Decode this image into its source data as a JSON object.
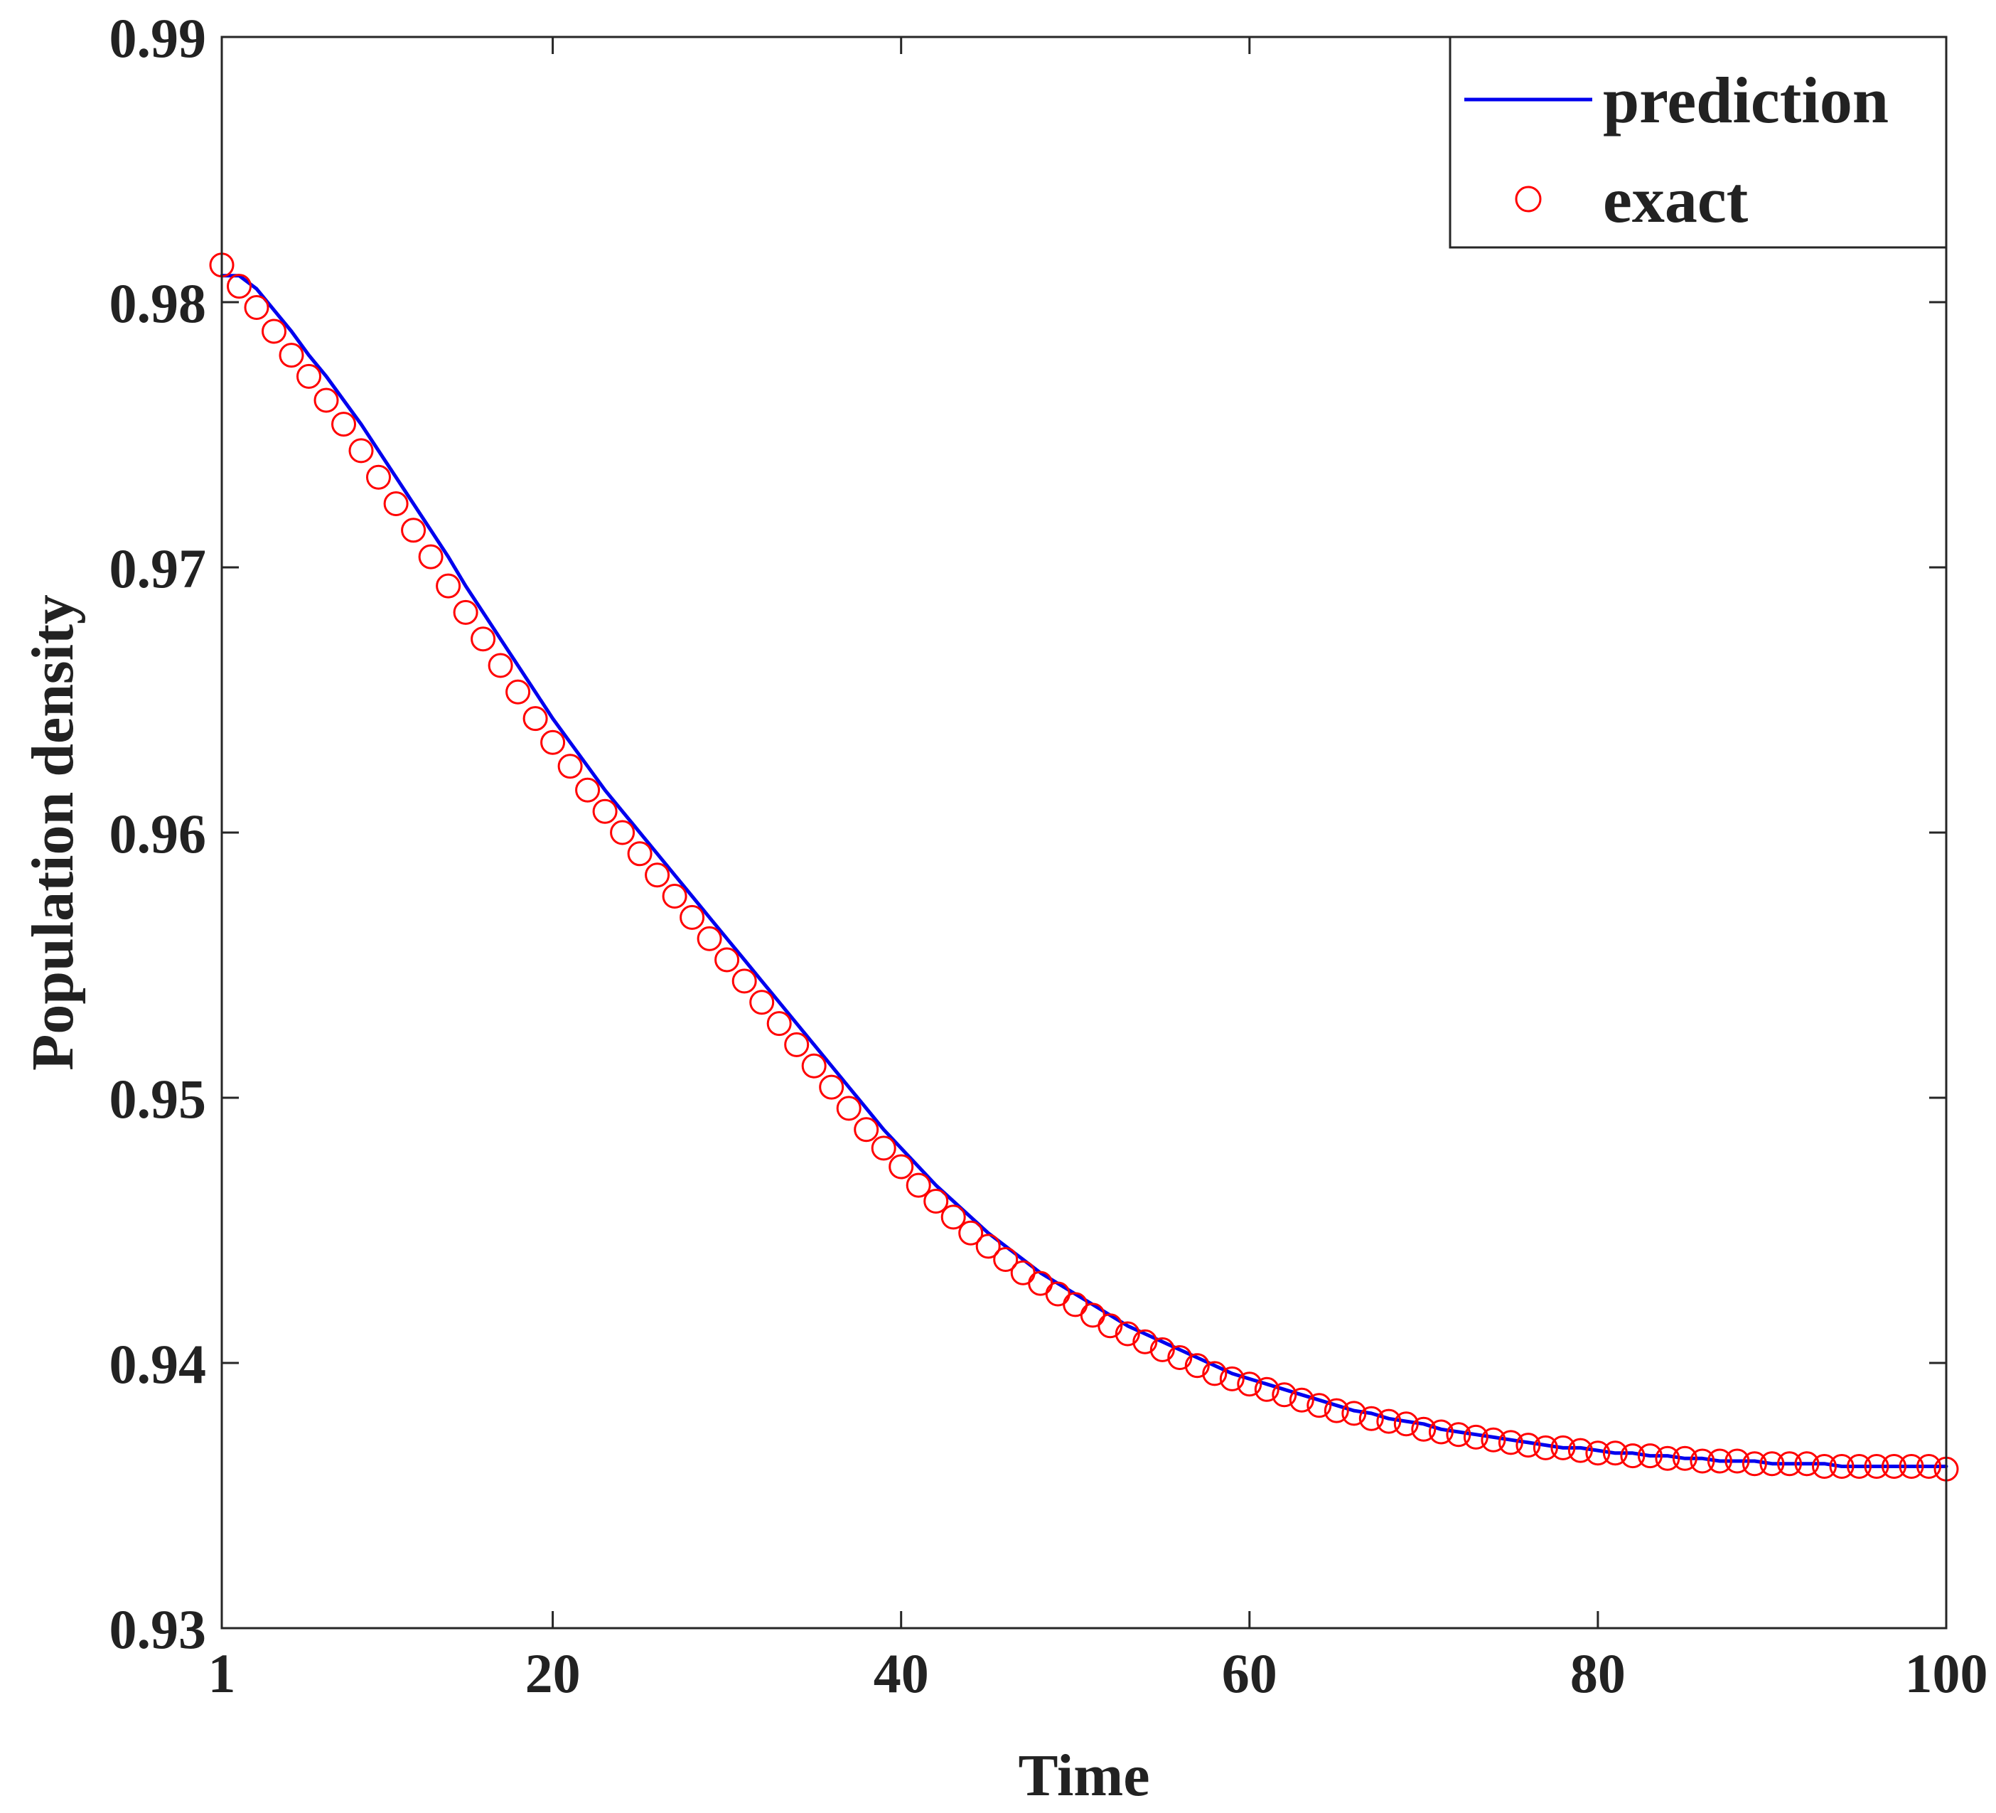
{
  "chart_data": {
    "type": "line",
    "title": "",
    "xlabel": "Time",
    "ylabel": "Population density",
    "xlim": [
      1,
      100
    ],
    "ylim": [
      0.93,
      0.99
    ],
    "xticks": [
      1,
      20,
      40,
      60,
      80,
      100
    ],
    "xtick_labels": [
      "1",
      "20",
      "40",
      "60",
      "80",
      "100"
    ],
    "yticks": [
      0.93,
      0.94,
      0.95,
      0.96,
      0.97,
      0.98,
      0.99
    ],
    "ytick_labels": [
      "0.93",
      "0.94",
      "0.95",
      "0.96",
      "0.97",
      "0.98",
      "0.99"
    ],
    "grid": false,
    "legend_position": "top-right",
    "series": [
      {
        "name": "prediction",
        "style": "line",
        "color": "#0000ee",
        "x": [
          1,
          2,
          3,
          4,
          5,
          6,
          7,
          8,
          9,
          10,
          11,
          12,
          13,
          14,
          15,
          16,
          17,
          18,
          19,
          20,
          21,
          22,
          23,
          24,
          25,
          26,
          27,
          28,
          29,
          30,
          31,
          32,
          33,
          34,
          35,
          36,
          37,
          38,
          39,
          40,
          41,
          42,
          43,
          44,
          45,
          46,
          47,
          48,
          49,
          50,
          51,
          52,
          53,
          54,
          55,
          56,
          57,
          58,
          59,
          60,
          61,
          62,
          63,
          64,
          65,
          66,
          67,
          68,
          69,
          70,
          71,
          72,
          73,
          74,
          75,
          76,
          77,
          78,
          79,
          80,
          81,
          82,
          83,
          84,
          85,
          86,
          87,
          88,
          89,
          90,
          91,
          92,
          93,
          94,
          95,
          96,
          97,
          98,
          99,
          100
        ],
        "y": [
          0.981,
          0.981,
          0.9805,
          0.9797,
          0.9789,
          0.978,
          0.9772,
          0.9763,
          0.9754,
          0.9744,
          0.9734,
          0.9724,
          0.9714,
          0.9704,
          0.9693,
          0.9683,
          0.9673,
          0.9663,
          0.9653,
          0.9643,
          0.9634,
          0.9625,
          0.9616,
          0.9608,
          0.96,
          0.9592,
          0.9584,
          0.9576,
          0.9568,
          0.956,
          0.9552,
          0.9544,
          0.9536,
          0.9528,
          0.952,
          0.9512,
          0.9504,
          0.9496,
          0.9488,
          0.9481,
          0.9474,
          0.9467,
          0.9461,
          0.9455,
          0.9449,
          0.9444,
          0.9439,
          0.9434,
          0.943,
          0.9426,
          0.9422,
          0.9418,
          0.9414,
          0.9411,
          0.9408,
          0.9405,
          0.9402,
          0.9399,
          0.9396,
          0.9394,
          0.9392,
          0.939,
          0.9388,
          0.9386,
          0.9384,
          0.9382,
          0.9381,
          0.9379,
          0.9378,
          0.9377,
          0.9375,
          0.9374,
          0.9373,
          0.9372,
          0.9371,
          0.937,
          0.9369,
          0.9368,
          0.9368,
          0.9367,
          0.9366,
          0.9366,
          0.9365,
          0.9365,
          0.9364,
          0.9364,
          0.9363,
          0.9363,
          0.9363,
          0.9362,
          0.9362,
          0.9362,
          0.9362,
          0.9361,
          0.9361,
          0.9361,
          0.9361,
          0.9361,
          0.9361,
          0.9361
        ]
      },
      {
        "name": "exact",
        "style": "circle",
        "color": "#ff0000",
        "x": [
          1,
          2,
          3,
          4,
          5,
          6,
          7,
          8,
          9,
          10,
          11,
          12,
          13,
          14,
          15,
          16,
          17,
          18,
          19,
          20,
          21,
          22,
          23,
          24,
          25,
          26,
          27,
          28,
          29,
          30,
          31,
          32,
          33,
          34,
          35,
          36,
          37,
          38,
          39,
          40,
          41,
          42,
          43,
          44,
          45,
          46,
          47,
          48,
          49,
          50,
          51,
          52,
          53,
          54,
          55,
          56,
          57,
          58,
          59,
          60,
          61,
          62,
          63,
          64,
          65,
          66,
          67,
          68,
          69,
          70,
          71,
          72,
          73,
          74,
          75,
          76,
          77,
          78,
          79,
          80,
          81,
          82,
          83,
          84,
          85,
          86,
          87,
          88,
          89,
          90,
          91,
          92,
          93,
          94,
          95,
          96,
          97,
          98,
          99,
          100
        ],
        "y": [
          0.9814,
          0.9806,
          0.9798,
          0.9789,
          0.978,
          0.9772,
          0.9763,
          0.9754,
          0.9744,
          0.9734,
          0.9724,
          0.9714,
          0.9704,
          0.9693,
          0.9683,
          0.9673,
          0.9663,
          0.9653,
          0.9643,
          0.9634,
          0.9625,
          0.9616,
          0.9608,
          0.96,
          0.9592,
          0.9584,
          0.9576,
          0.9568,
          0.956,
          0.9552,
          0.9544,
          0.9536,
          0.9528,
          0.952,
          0.9512,
          0.9504,
          0.9496,
          0.9488,
          0.9481,
          0.9474,
          0.9467,
          0.9461,
          0.9455,
          0.9449,
          0.9444,
          0.9439,
          0.9434,
          0.943,
          0.9426,
          0.9422,
          0.9418,
          0.9414,
          0.9411,
          0.9408,
          0.9405,
          0.9402,
          0.9399,
          0.9396,
          0.9394,
          0.9392,
          0.939,
          0.9388,
          0.9386,
          0.9384,
          0.9382,
          0.9381,
          0.9379,
          0.9378,
          0.9377,
          0.9375,
          0.9374,
          0.9373,
          0.9372,
          0.9371,
          0.937,
          0.9369,
          0.9368,
          0.9368,
          0.9367,
          0.9366,
          0.9366,
          0.9365,
          0.9365,
          0.9364,
          0.9364,
          0.9363,
          0.9363,
          0.9363,
          0.9362,
          0.9362,
          0.9362,
          0.9362,
          0.9361,
          0.9361,
          0.9361,
          0.9361,
          0.9361,
          0.9361,
          0.9361,
          0.936
        ]
      }
    ]
  }
}
